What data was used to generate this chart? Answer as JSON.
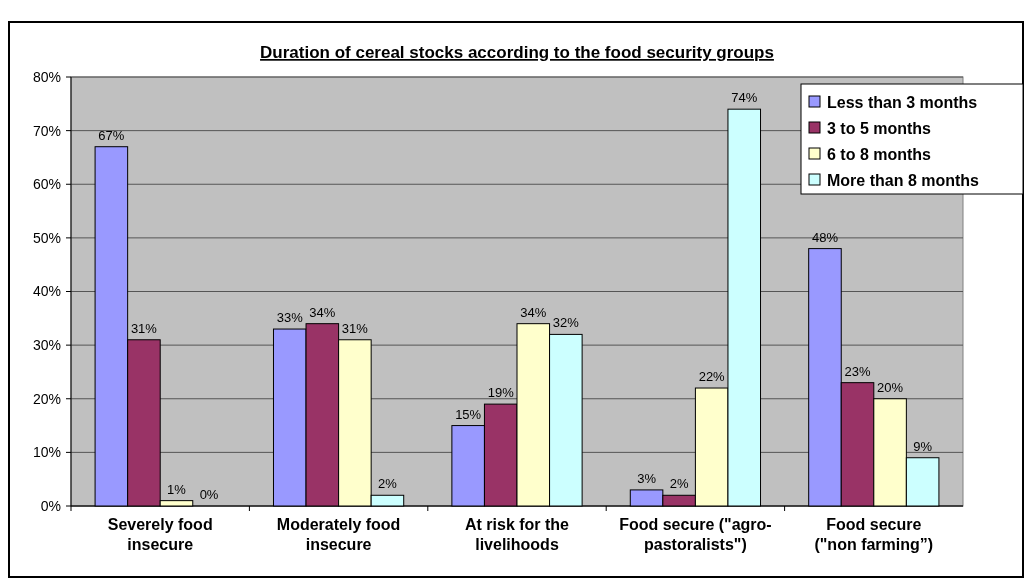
{
  "chart_data": {
    "type": "bar",
    "title": "Duration of cereal stocks according to the food security groups",
    "categories": [
      "Severely food\ninsecure",
      "Moderately food\ninsecure",
      "At risk for the\nlivelihoods",
      "Food secure (\"agro-\npastoralists\")",
      "Food secure\n(\"non farming”)"
    ],
    "series": [
      {
        "name": "Less than 3 months",
        "color": "#9999ff",
        "values": [
          67,
          33,
          15,
          3,
          48
        ]
      },
      {
        "name": "3 to 5 months",
        "color": "#993366",
        "values": [
          31,
          34,
          19,
          2,
          23
        ]
      },
      {
        "name": "6 to 8 months",
        "color": "#ffffcc",
        "values": [
          1,
          31,
          34,
          22,
          20
        ]
      },
      {
        "name": "More than 8 months",
        "color": "#ccffff",
        "values": [
          0,
          2,
          32,
          74,
          9
        ]
      }
    ],
    "ylim": [
      0,
      80
    ],
    "yticks": [
      {
        "value": 0,
        "label": "0%"
      },
      {
        "value": 10,
        "label": "10%"
      },
      {
        "value": 20,
        "label": "20%"
      },
      {
        "value": 30,
        "label": "30%"
      },
      {
        "value": 40,
        "label": "40%"
      },
      {
        "value": 50,
        "label": "50%"
      },
      {
        "value": 60,
        "label": "60%"
      },
      {
        "value": 70,
        "label": "70%"
      },
      {
        "value": 80,
        "label": "80%"
      }
    ],
    "grid": "y",
    "legend": "top right",
    "value_labels": [
      [
        "67%",
        "33%",
        "15%",
        "3%",
        "48%"
      ],
      [
        "31%",
        "34%",
        "19%",
        "2%",
        "23%"
      ],
      [
        "1%",
        "31%",
        "34%",
        "22%",
        "20%"
      ],
      [
        "0%",
        "2%",
        "32%",
        "74%",
        "9%"
      ]
    ]
  }
}
